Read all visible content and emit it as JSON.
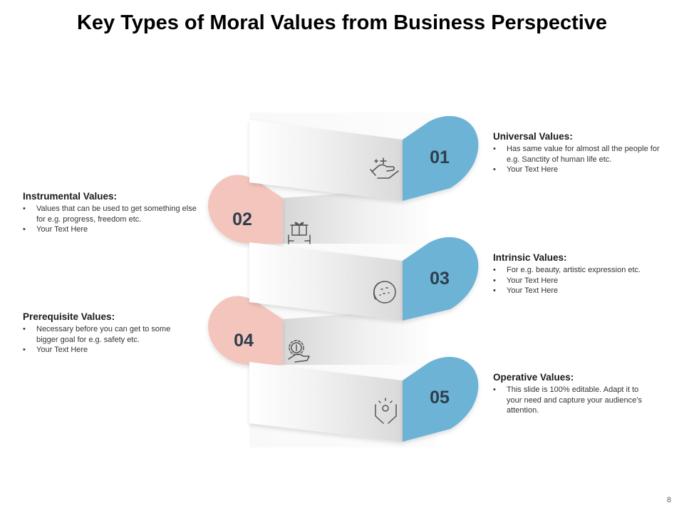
{
  "title": "Key Types of Moral Values from Business Perspective",
  "page_number": "8",
  "colors": {
    "blue": "#6db3d6",
    "pink": "#f3c5bd",
    "ribbon_light": "#f7f7f7",
    "ribbon_dark": "#dcdcdc",
    "number": "#2e3e4c"
  },
  "steps": [
    {
      "number": "01",
      "side": "right",
      "color": "blue",
      "icon": "hand-sparkle-icon",
      "heading": "Universal Values:",
      "bullets": [
        "Has same value for almost all the people for e.g. Sanctity of human life etc.",
        "Your Text Here"
      ]
    },
    {
      "number": "02",
      "side": "left",
      "color": "pink",
      "icon": "gift-box-hands-icon",
      "heading": "Instrumental Values:",
      "bullets": [
        "Values that can be used to get something else for e.g. progress, freedom etc.",
        "Your Text Here"
      ]
    },
    {
      "number": "03",
      "side": "right",
      "color": "blue",
      "icon": "circle-stars-icon",
      "heading": "Intrinsic Values:",
      "bullets": [
        "For e.g.  beauty, artistic expression etc.",
        "Your Text Here",
        "Your Text Here"
      ]
    },
    {
      "number": "04",
      "side": "left",
      "color": "pink",
      "icon": "gear-dollar-hand-icon",
      "heading": "Prerequisite Values:",
      "bullets": [
        "Necessary before you can get to some bigger goal for e.g. safety etc.",
        "Your Text Here"
      ]
    },
    {
      "number": "05",
      "side": "right",
      "color": "blue",
      "icon": "hands-dollar-icon",
      "heading": "Operative Values:",
      "bullets": [
        "This slide is 100% editable. Adapt it to your need and capture your audience’s attention."
      ]
    }
  ]
}
